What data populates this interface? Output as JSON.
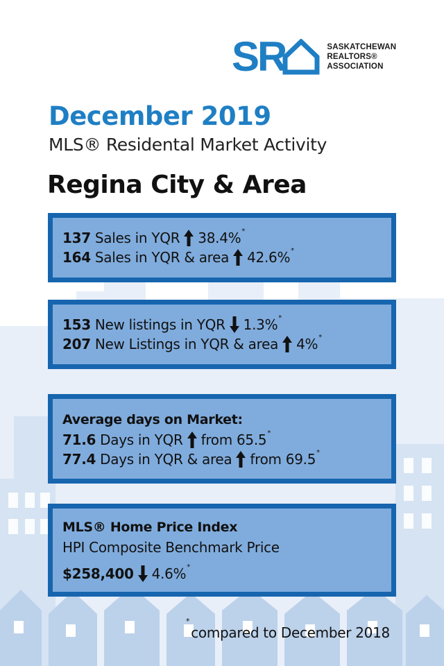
{
  "logo": {
    "letters": "SR",
    "line1": "SASKATCHEWAN",
    "line2": "REALTORS®",
    "line3": "ASSOCIATION",
    "brand_color": "#1f7fc4"
  },
  "header": {
    "title": "December 2019",
    "subtitle": "MLS® Residental Market Activity",
    "region": "Regina City & Area"
  },
  "sales": {
    "row1": {
      "num": "137",
      "text": "Sales in YQR",
      "direction": "up",
      "pct": "38.4%",
      "mark": "*"
    },
    "row2": {
      "num": "164",
      "text": "Sales in YQR & area",
      "direction": "up",
      "pct": "42.6%",
      "mark": "*"
    }
  },
  "listings": {
    "row1": {
      "num": "153",
      "text": "New listings in YQR",
      "direction": "down",
      "pct": "1.3%",
      "mark": "*"
    },
    "row2": {
      "num": "207",
      "text": "New Listings in YQR & area",
      "direction": "up",
      "pct": "4%",
      "mark": "*"
    }
  },
  "days": {
    "heading": "Average days on Market:",
    "row1": {
      "num": "71.6",
      "text": "Days in YQR",
      "direction": "up",
      "pct": "from 65.5",
      "mark": "*"
    },
    "row2": {
      "num": "77.4",
      "text": "Days in YQR & area",
      "direction": "up",
      "pct": "from 69.5",
      "mark": "*"
    }
  },
  "hpi": {
    "heading": "MLS® Home Price Index",
    "subheading": "HPI Composite Benchmark Price",
    "row1": {
      "num": "$258,400",
      "direction": "down",
      "pct": "4.6%",
      "mark": "*"
    }
  },
  "footnote": {
    "mark": "*",
    "text": "compared to December 2018"
  },
  "colors": {
    "card_border": "#1665ae",
    "card_fill": "#80acdd",
    "skyline_light": "#e6eef8",
    "skyline_mid": "#c7d9ef"
  }
}
